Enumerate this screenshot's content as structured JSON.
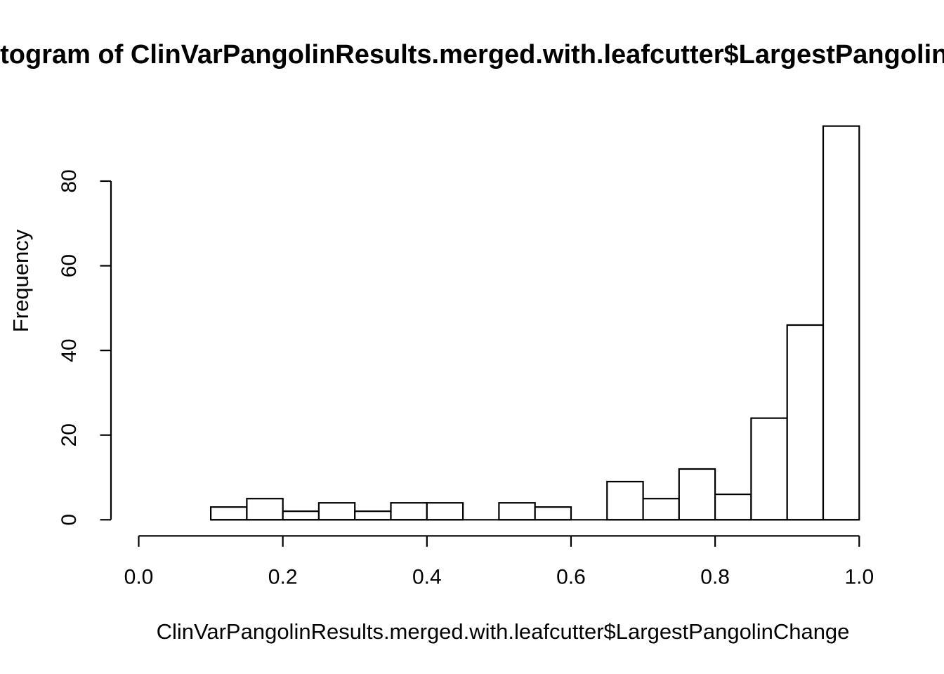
{
  "chart_data": {
    "type": "bar",
    "chart_kind": "histogram",
    "title": "Histogram of ClinVarPangolinResults.merged.with.leafcutter$LargestPangolinChange",
    "title_visible_portion": "togram of ClinVarPangolinResults.merged.with.leafcutter$LargestPangolin",
    "xlabel": "ClinVarPangolinResults.merged.with.leafcutter$LargestPangolinChange",
    "ylabel": "Frequency",
    "bin_width": 0.05,
    "bin_edges": [
      0.1,
      0.15,
      0.2,
      0.25,
      0.3,
      0.35,
      0.4,
      0.45,
      0.5,
      0.55,
      0.6,
      0.65,
      0.7,
      0.75,
      0.8,
      0.85,
      0.9,
      0.95,
      1.0
    ],
    "counts": [
      3,
      5,
      2,
      4,
      2,
      4,
      4,
      0,
      4,
      3,
      0,
      9,
      5,
      12,
      6,
      24,
      46,
      93
    ],
    "xlim": [
      0.0,
      1.0
    ],
    "ylim": [
      0,
      80
    ],
    "x_ticks": [
      0.0,
      0.2,
      0.4,
      0.6,
      0.8,
      1.0
    ],
    "x_tick_labels": [
      "0.0",
      "0.2",
      "0.4",
      "0.6",
      "0.8",
      "1.0"
    ],
    "y_ticks": [
      0,
      20,
      40,
      60,
      80
    ],
    "y_tick_labels": [
      "0",
      "20",
      "40",
      "60",
      "80"
    ],
    "bar_fill": "#ffffff",
    "bar_stroke": "#000000",
    "axis_color": "#000000",
    "grid": false,
    "legend": false
  }
}
